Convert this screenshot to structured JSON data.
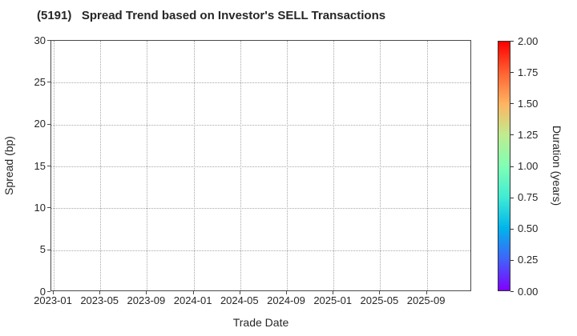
{
  "chart_data": {
    "type": "scatter",
    "title": "(5191)   Spread Trend based on Investor's SELL Transactions",
    "xlabel": "Trade Date",
    "ylabel": "Spread (bp)",
    "x_tick_labels": [
      "2023-01",
      "2023-05",
      "2023-09",
      "2024-01",
      "2024-05",
      "2024-09",
      "2025-01",
      "2025-05",
      "2025-09"
    ],
    "y_tick_values": [
      0,
      5,
      10,
      15,
      20,
      25,
      30
    ],
    "y_tick_labels": [
      "0",
      "5",
      "10",
      "15",
      "20",
      "25",
      "30"
    ],
    "ylim": [
      0,
      30
    ],
    "grid": {
      "style": "dotted",
      "color": "#a8a8a8",
      "on": true
    },
    "points": [],
    "series": [],
    "colorbar": {
      "label": "Duration (years)",
      "colormap": "rainbow",
      "vmin": 0.0,
      "vmax": 2.0,
      "tick_labels_top_to_bottom": [
        "2.00",
        "1.75",
        "1.50",
        "1.25",
        "1.00",
        "0.75",
        "0.50",
        "0.25",
        "0.00"
      ],
      "gradient_stops_bottom_to_top": [
        "#8000ff",
        "#4062fa",
        "#00b4ec",
        "#40ecd4",
        "#80ffb4",
        "#bfec8e",
        "#ffb461",
        "#ff6232",
        "#ff0000"
      ]
    }
  }
}
